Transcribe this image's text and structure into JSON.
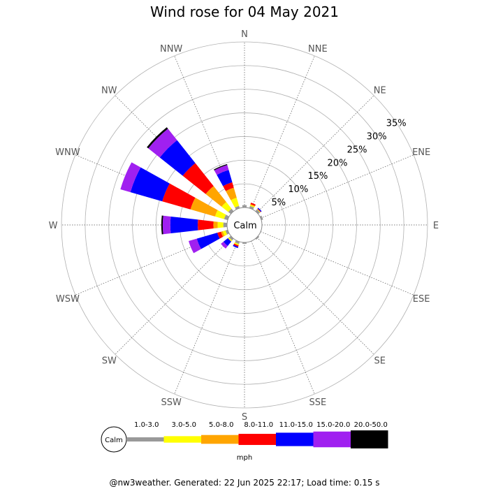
{
  "chart_data": {
    "type": "wind-rose",
    "title": "Wind rose for 04 May 2021",
    "directions": [
      "N",
      "NNE",
      "NE",
      "ENE",
      "E",
      "ESE",
      "SE",
      "SSE",
      "S",
      "SSW",
      "SW",
      "WSW",
      "W",
      "WNW",
      "NW",
      "NNW"
    ],
    "radial_ticks": [
      "5%",
      "10%",
      "15%",
      "20%",
      "25%",
      "30%",
      "35%"
    ],
    "radial_max_percent": 35,
    "calm_label": "Calm",
    "legend_unit": "mph",
    "bins": [
      {
        "label": "1.0-3.0",
        "color": "#999999"
      },
      {
        "label": "3.0-5.0",
        "color": "#ffff00"
      },
      {
        "label": "5.0-8.0",
        "color": "#ffa500"
      },
      {
        "label": "8.0-11.0",
        "color": "#ff0000"
      },
      {
        "label": "11.0-15.0",
        "color": "#0000ff"
      },
      {
        "label": "15.0-20.0",
        "color": "#a020f0"
      },
      {
        "label": "20.0-50.0",
        "color": "#000000"
      }
    ],
    "series": [
      {
        "direction": "NE",
        "values": [
          0.5,
          0.1,
          0.05,
          0.1,
          0.2,
          0,
          0
        ]
      },
      {
        "direction": "ENE",
        "values": [
          0.4,
          0,
          0,
          0,
          0,
          0,
          0
        ]
      },
      {
        "direction": "SE",
        "values": [
          0.3,
          0,
          0,
          0,
          0,
          0,
          0
        ]
      },
      {
        "direction": "S",
        "values": [
          0.3,
          0,
          0,
          0,
          0,
          0,
          0
        ]
      },
      {
        "direction": "SSW",
        "values": [
          0.5,
          0.3,
          0,
          0.3,
          0.3,
          0,
          0
        ]
      },
      {
        "direction": "SW",
        "values": [
          0.5,
          0.3,
          0,
          0,
          1.2,
          0.7,
          0
        ]
      },
      {
        "direction": "WSW",
        "values": [
          0.5,
          0.6,
          0.4,
          0.8,
          4.5,
          1.8,
          0
        ]
      },
      {
        "direction": "W",
        "values": [
          0.8,
          1.2,
          0.9,
          3.3,
          5.8,
          1.6,
          0.3
        ]
      },
      {
        "direction": "WNW",
        "values": [
          0.8,
          2.0,
          5.4,
          6.2,
          7.0,
          2.2,
          0
        ]
      },
      {
        "direction": "NW",
        "values": [
          0.7,
          1.8,
          4.3,
          6.2,
          6.2,
          3.1,
          0.4
        ]
      },
      {
        "direction": "NNW",
        "values": [
          0.5,
          1.8,
          2.2,
          1.2,
          2.7,
          1.1,
          0.2
        ]
      },
      {
        "direction": "N",
        "values": [
          0.5,
          0,
          0,
          0,
          0,
          0,
          0
        ]
      },
      {
        "direction": "NNE",
        "values": [
          0.5,
          0.2,
          0.2,
          0.3,
          0,
          0,
          0
        ]
      }
    ]
  },
  "footer": "@nw3weather. Generated: 22 Jun 2025 22:17; Load time: 0.15 s"
}
